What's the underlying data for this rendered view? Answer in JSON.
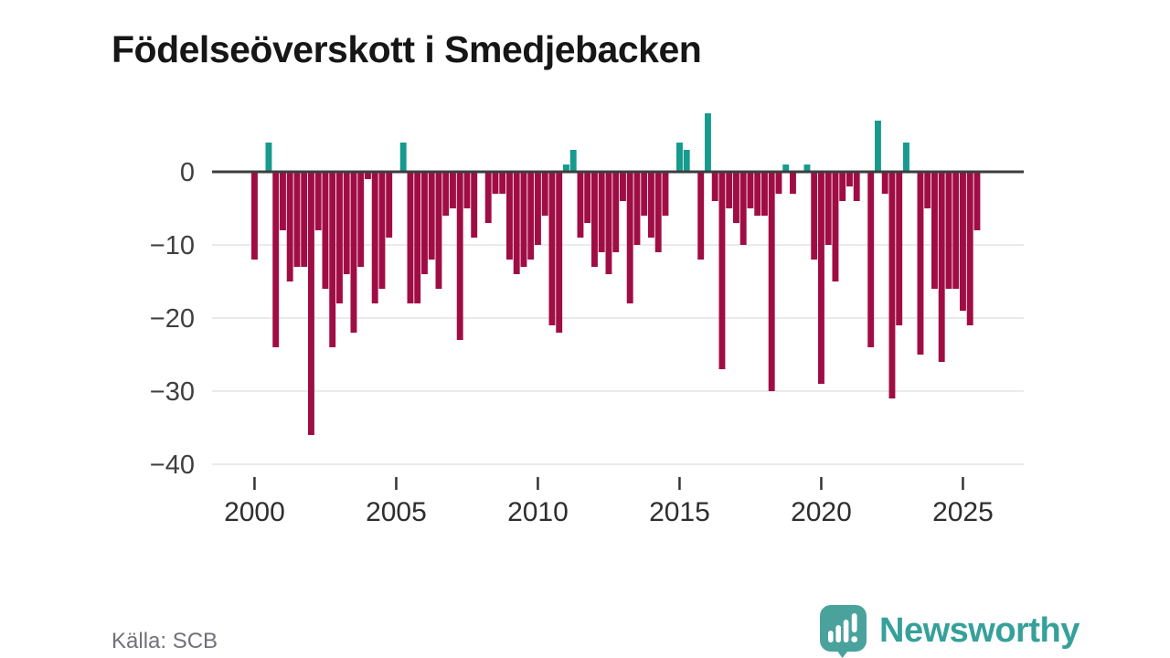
{
  "title": "Födelseöverskott i Smedjebacken",
  "source_label": "Källa: SCB",
  "branding": {
    "name": "Newsworthy",
    "logo_icon": "bar-chart-exclamation-speech-bubble"
  },
  "colors": {
    "negative_bar": "#a00d45",
    "positive_bar": "#169b8e",
    "zero_line": "#3d3d3d",
    "gridline": "#e3e3e3",
    "y_axis_text": "#3f3f3f",
    "x_axis_text": "#2e2e2e",
    "tick_mark": "#333333",
    "title_text": "#161616",
    "source_text": "#71717a",
    "brand_teal": "#36a09a"
  },
  "chart_data": {
    "type": "bar",
    "title": "Födelseöverskott i Smedjebacken",
    "x_unit": "quarter",
    "x_start": "2000-Q1",
    "x_end": "2025-Q4",
    "values": [
      -12,
      0,
      4,
      -24,
      -8,
      -15,
      -13,
      -13,
      -36,
      -8,
      -16,
      -24,
      -18,
      -14,
      -22,
      -13,
      -1,
      -18,
      -16,
      -9,
      0,
      4,
      -18,
      -18,
      -14,
      -12,
      -16,
      -6,
      -5,
      -23,
      -5,
      -9,
      0,
      -7,
      -3,
      -3,
      -12,
      -14,
      -13,
      -12,
      -10,
      -6,
      -21,
      -22,
      1,
      3,
      -9,
      -7,
      -13,
      -11,
      -14,
      -11,
      -4,
      -18,
      -10,
      -6,
      -9,
      -11,
      -6,
      0,
      4,
      3,
      0,
      -12,
      8,
      -4,
      -27,
      -5,
      -7,
      -10,
      -5,
      -6,
      -6,
      -30,
      -3,
      1,
      -3,
      0,
      1,
      -12,
      -29,
      -10,
      -15,
      -4,
      -2,
      -4,
      0,
      -24,
      7,
      -3,
      -31,
      -21,
      4,
      0,
      -25,
      -5,
      -16,
      -26,
      -16,
      -16,
      -19,
      -21,
      -8,
      0
    ],
    "xticks": [
      {
        "label": "2000",
        "quarter_index": 0
      },
      {
        "label": "2005",
        "quarter_index": 20
      },
      {
        "label": "2010",
        "quarter_index": 40
      },
      {
        "label": "2015",
        "quarter_index": 60
      },
      {
        "label": "2020",
        "quarter_index": 80
      },
      {
        "label": "2025",
        "quarter_index": 100
      }
    ],
    "yticks": [
      0,
      -10,
      -20,
      -30,
      -40
    ],
    "ylim": [
      -40.5,
      9
    ],
    "grid": "horizontal",
    "legend": "none",
    "source": "Källa: SCB"
  }
}
